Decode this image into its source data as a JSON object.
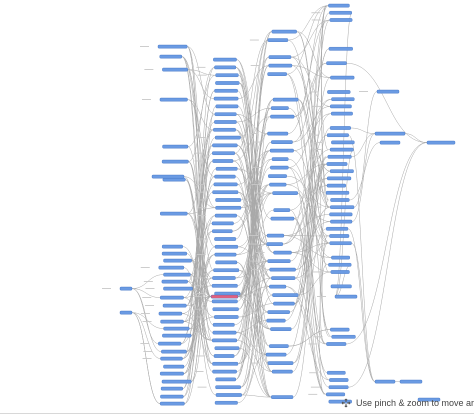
{
  "graph": {
    "layout": "layered-left-to-right",
    "node_color": "#6b9be3",
    "highlight_color": "#e0607f",
    "edge_color": "#a9a9a9",
    "background": "#ffffff",
    "approx_node_count": 260,
    "highlighted_node_count": 1
  },
  "overlay": {
    "icon": "pinch-zoom-icon",
    "hint_text": "Use pinch & zoom to move around"
  }
}
